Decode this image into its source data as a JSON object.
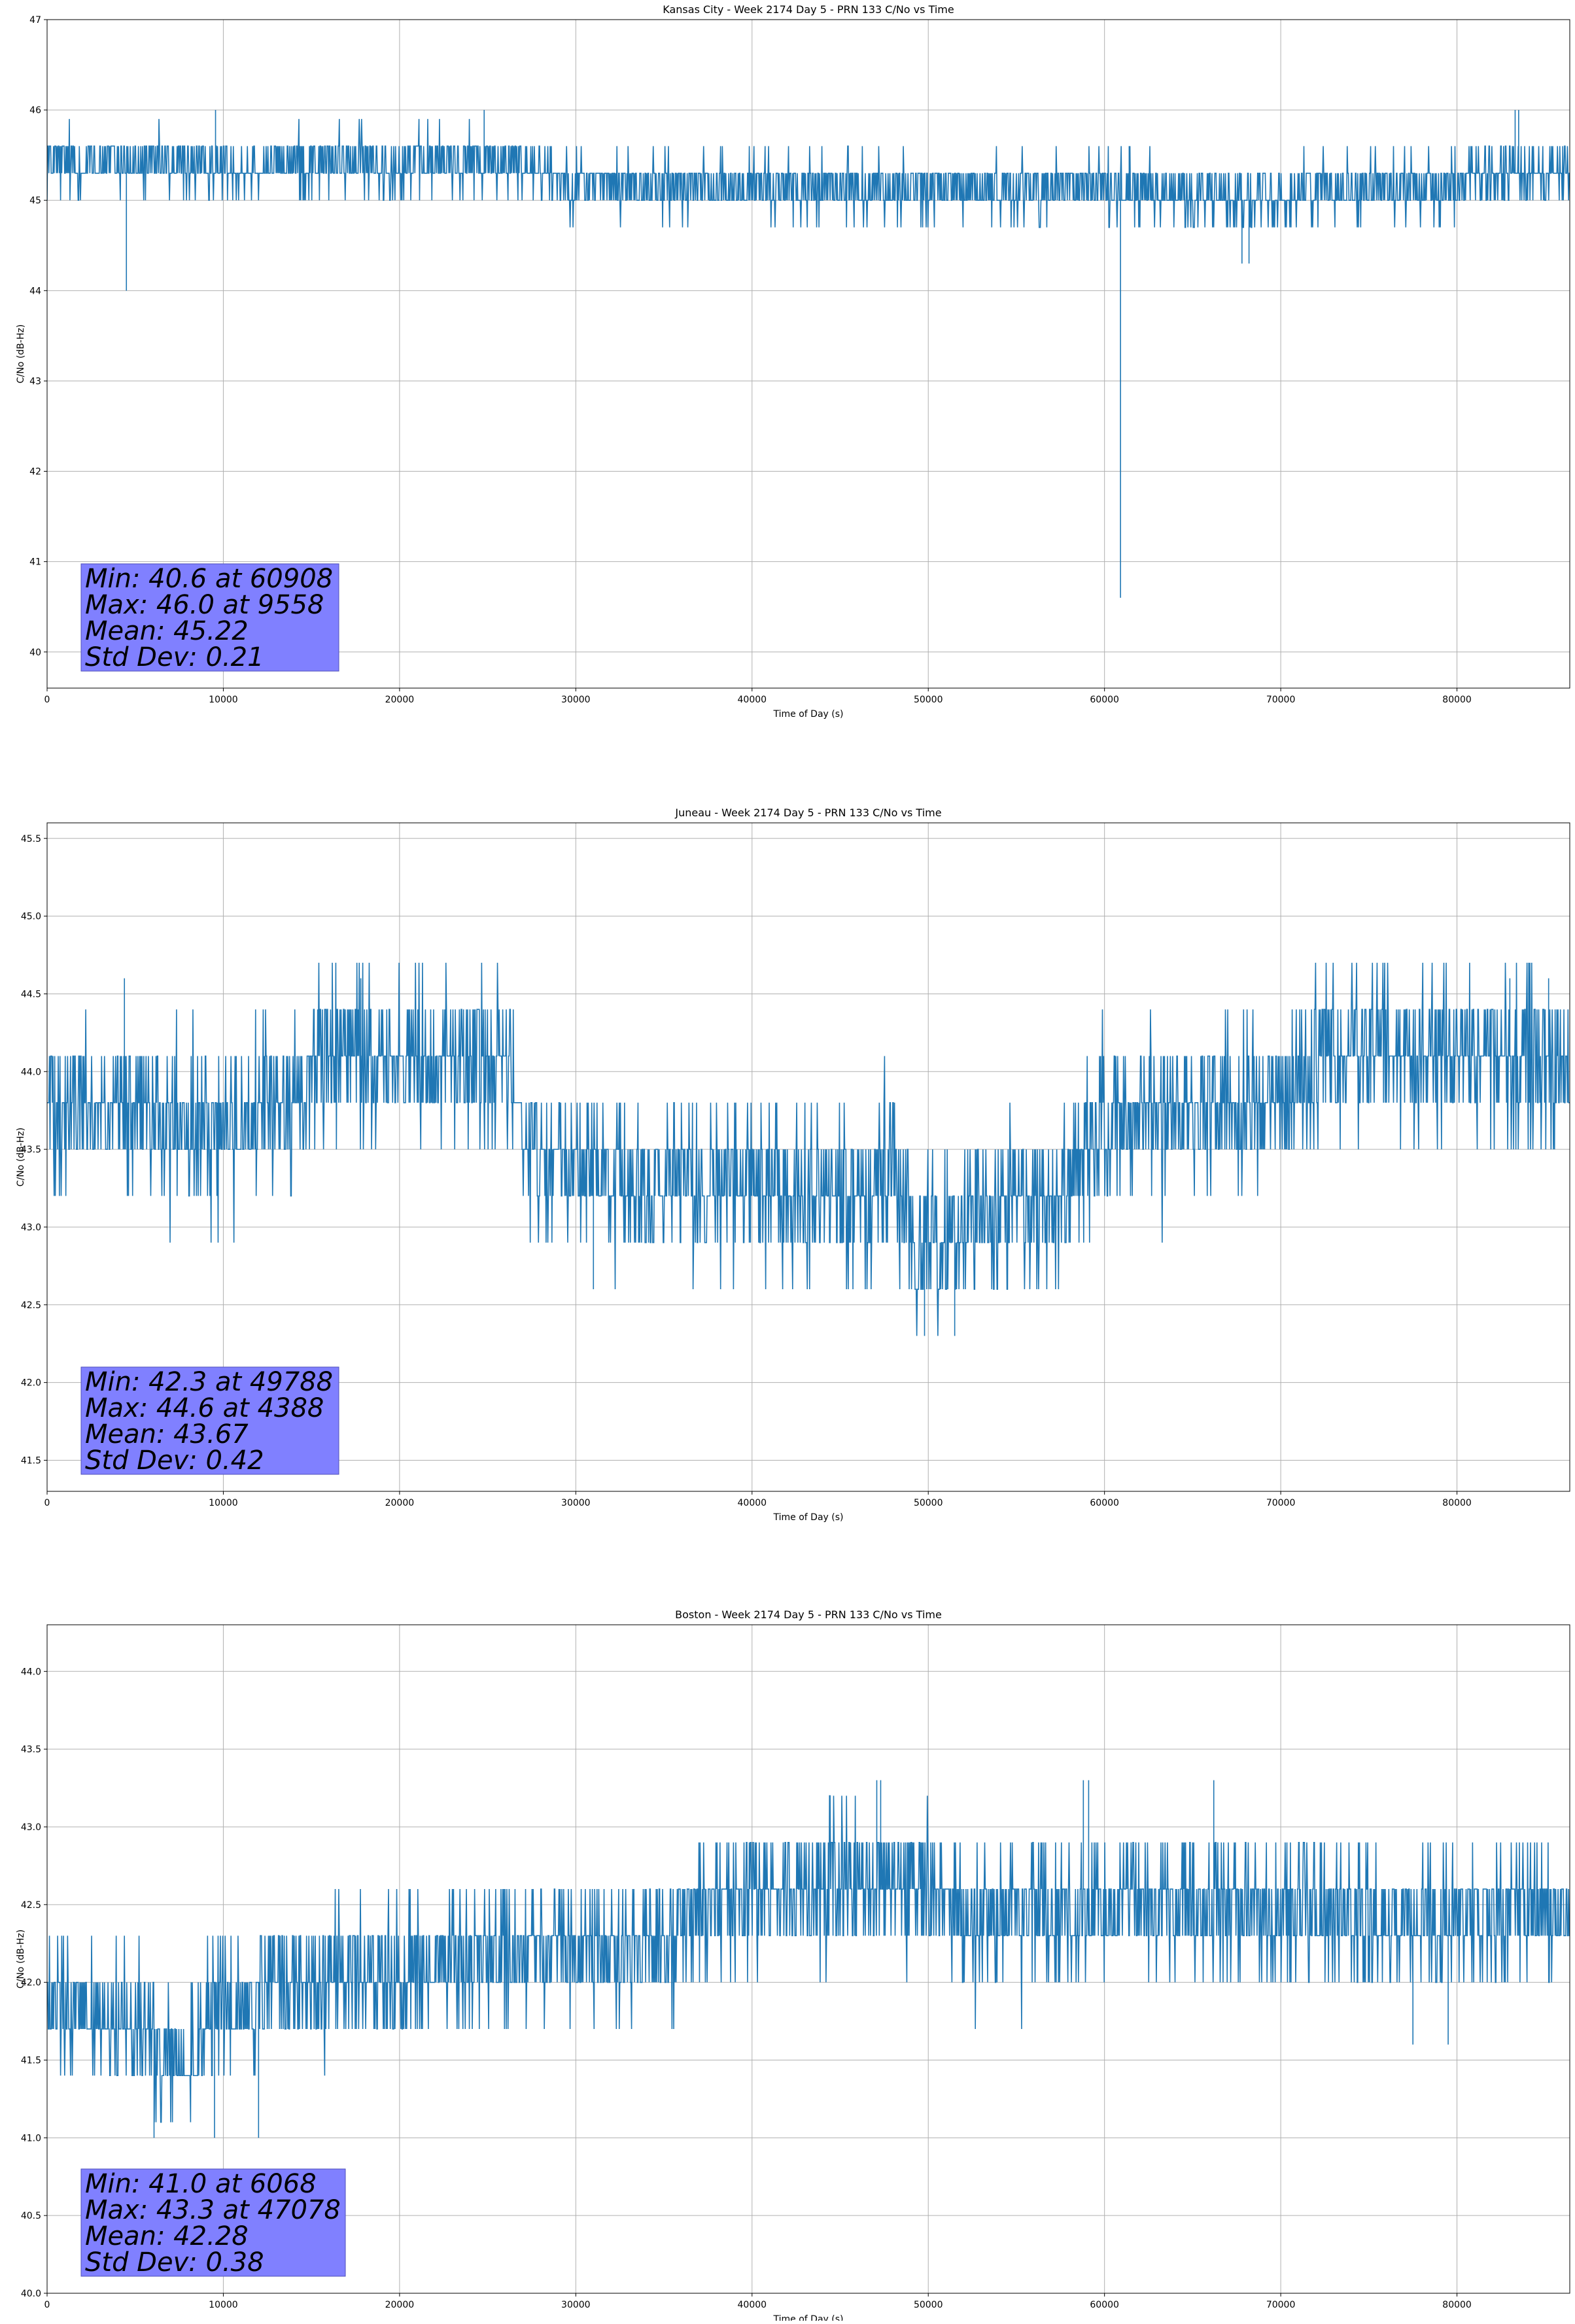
{
  "figure": {
    "background": "#ffffff",
    "line_color": "#1f77b4",
    "stats_box_color": "#8080ff",
    "grid_color": "#b0b0b0"
  },
  "chart_data": [
    {
      "type": "line",
      "title": "Kansas City - Week 2174 Day 5 - PRN 133 C/No vs Time",
      "xlabel": "Time of Day (s)",
      "ylabel": "C/No (dB-Hz)",
      "xlim": [
        0,
        86400
      ],
      "ylim": [
        39.6,
        47.0
      ],
      "xticks": [
        "0",
        "10000",
        "20000",
        "30000",
        "40000",
        "50000",
        "60000",
        "70000",
        "80000"
      ],
      "yticks": [
        "40",
        "41",
        "42",
        "43",
        "44",
        "45",
        "46",
        "47"
      ],
      "grid": true,
      "quantization": 0.3,
      "trend": [
        [
          0,
          45.42
        ],
        [
          9000,
          45.38
        ],
        [
          15000,
          45.4
        ],
        [
          22000,
          45.42
        ],
        [
          27500,
          45.38
        ],
        [
          29500,
          45.2
        ],
        [
          40000,
          45.15
        ],
        [
          50000,
          45.12
        ],
        [
          60000,
          45.15
        ],
        [
          65000,
          45.05
        ],
        [
          70000,
          45.0
        ],
        [
          72000,
          45.15
        ],
        [
          80000,
          45.18
        ],
        [
          83000,
          45.3
        ],
        [
          86400,
          45.3
        ]
      ],
      "noise_std": 0.17,
      "spikes": [
        [
          4500,
          44.0
        ],
        [
          9558,
          46.0
        ],
        [
          24800,
          46.0
        ],
        [
          60908,
          40.6
        ],
        [
          61400,
          45.6
        ],
        [
          67800,
          44.3
        ],
        [
          68200,
          44.3
        ],
        [
          83300,
          46.0
        ],
        [
          83500,
          46.0
        ]
      ],
      "stats": {
        "min": "Min: 40.6 at 60908",
        "max": "Max: 46.0 at 9558",
        "mean": "Mean: 45.22",
        "std": "Std Dev: 0.21"
      }
    },
    {
      "type": "line",
      "title": "Juneau - Week 2174 Day 5 - PRN 133 C/No vs Time",
      "xlabel": "Time of Day (s)",
      "ylabel": "C/No (dB-Hz)",
      "xlim": [
        0,
        86400
      ],
      "ylim": [
        41.3,
        45.6
      ],
      "xticks": [
        "0",
        "10000",
        "20000",
        "30000",
        "40000",
        "50000",
        "60000",
        "70000",
        "80000"
      ],
      "yticks": [
        "41.5",
        "42.0",
        "42.5",
        "43.0",
        "43.5",
        "44.0",
        "44.5",
        "45.0",
        "45.5"
      ],
      "grid": true,
      "quantization": 0.3,
      "trend": [
        [
          0,
          43.85
        ],
        [
          8000,
          43.6
        ],
        [
          12000,
          43.75
        ],
        [
          14500,
          43.8
        ],
        [
          15000,
          44.1
        ],
        [
          25000,
          44.1
        ],
        [
          26500,
          43.9
        ],
        [
          27500,
          43.45
        ],
        [
          31000,
          43.35
        ],
        [
          35000,
          43.2
        ],
        [
          40000,
          43.3
        ],
        [
          45000,
          43.2
        ],
        [
          48000,
          43.3
        ],
        [
          49500,
          42.85
        ],
        [
          51000,
          42.95
        ],
        [
          55000,
          43.1
        ],
        [
          58000,
          43.2
        ],
        [
          60000,
          43.65
        ],
        [
          65000,
          43.8
        ],
        [
          71000,
          43.85
        ],
        [
          72000,
          44.1
        ],
        [
          80000,
          44.15
        ],
        [
          86400,
          44.05
        ]
      ],
      "noise_std": 0.26,
      "spikes": [
        [
          4388,
          44.6
        ],
        [
          17800,
          44.6
        ],
        [
          31000,
          42.6
        ],
        [
          49788,
          42.3
        ],
        [
          51500,
          42.3
        ],
        [
          83000,
          44.6
        ],
        [
          85200,
          44.6
        ]
      ],
      "stats": {
        "min": "Min: 42.3 at 49788",
        "max": "Max: 44.6 at 4388",
        "mean": "Mean: 43.67",
        "std": "Std Dev: 0.42"
      }
    },
    {
      "type": "line",
      "title": "Boston - Week 2174 Day 5 - PRN 133 C/No vs Time",
      "xlabel": "Time of Day (s)",
      "ylabel": "C/No (dB-Hz)",
      "xlim": [
        0,
        86400
      ],
      "ylim": [
        40.0,
        44.3
      ],
      "xticks": [
        "0",
        "10000",
        "20000",
        "30000",
        "40000",
        "50000",
        "60000",
        "70000",
        "80000"
      ],
      "yticks": [
        "40.0",
        "40.5",
        "41.0",
        "41.5",
        "42.0",
        "42.5",
        "43.0",
        "43.5",
        "44.0"
      ],
      "grid": true,
      "quantization": 0.3,
      "trend": [
        [
          0,
          41.8
        ],
        [
          5500,
          41.75
        ],
        [
          6500,
          41.45
        ],
        [
          8500,
          41.5
        ],
        [
          9000,
          41.8
        ],
        [
          12000,
          41.85
        ],
        [
          13000,
          42.0
        ],
        [
          20000,
          42.05
        ],
        [
          25000,
          42.15
        ],
        [
          30000,
          42.2
        ],
        [
          36000,
          42.3
        ],
        [
          37000,
          42.45
        ],
        [
          40000,
          42.55
        ],
        [
          45000,
          42.65
        ],
        [
          50000,
          42.6
        ],
        [
          52000,
          42.4
        ],
        [
          60000,
          42.5
        ],
        [
          70000,
          42.5
        ],
        [
          75000,
          42.4
        ],
        [
          86400,
          42.45
        ]
      ],
      "noise_std": 0.22,
      "spikes": [
        [
          6068,
          41.0
        ],
        [
          9500,
          41.0
        ],
        [
          12000,
          41.0
        ],
        [
          47078,
          43.3
        ],
        [
          47300,
          43.3
        ],
        [
          58800,
          43.3
        ],
        [
          59100,
          43.3
        ],
        [
          66200,
          43.3
        ],
        [
          77500,
          41.6
        ],
        [
          79500,
          41.6
        ]
      ],
      "stats": {
        "min": "Min: 41.0 at 6068",
        "max": "Max: 43.3 at 47078",
        "mean": "Mean: 42.28",
        "std": "Std Dev: 0.38"
      }
    }
  ]
}
